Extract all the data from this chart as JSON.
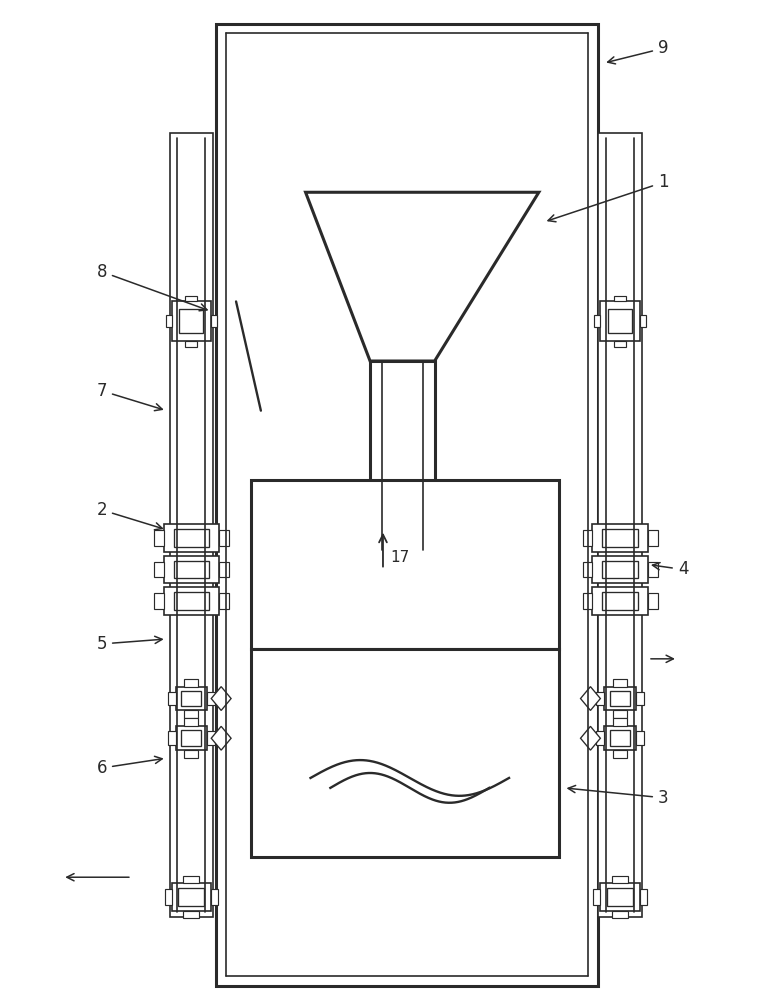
{
  "bg_color": "#ffffff",
  "lc": "#2a2a2a",
  "lw": 1.2,
  "tlw": 2.2,
  "fig_w": 7.6,
  "fig_h": 10.0
}
